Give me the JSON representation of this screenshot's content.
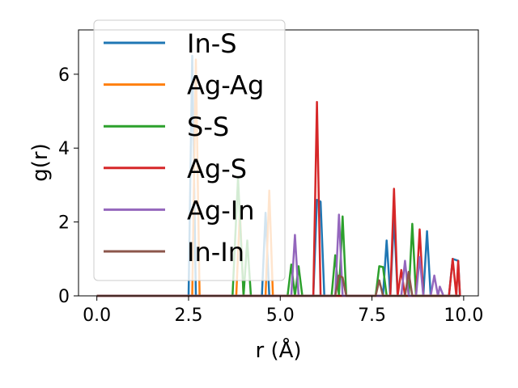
{
  "chart_data": {
    "type": "line",
    "title": "",
    "xlabel": "r (Å)",
    "ylabel": "g(r)",
    "xlim": [
      -0.5,
      10.4
    ],
    "ylim": [
      0,
      7.2
    ],
    "xticks": [
      0.0,
      2.5,
      5.0,
      7.5,
      10.0
    ],
    "xtick_labels": [
      "0.0",
      "2.5",
      "5.0",
      "7.5",
      "10.0"
    ],
    "yticks": [
      0,
      2,
      4,
      6
    ],
    "ytick_labels": [
      "0",
      "2",
      "4",
      "6"
    ],
    "grid": false,
    "legend_position": "upper-left",
    "series": [
      {
        "name": "In-S",
        "color": "#1f77b4",
        "points": [
          [
            0,
            0
          ],
          [
            2.5,
            0
          ],
          [
            2.6,
            6.5
          ],
          [
            2.7,
            0
          ],
          [
            4.5,
            0
          ],
          [
            4.6,
            2.25
          ],
          [
            4.7,
            0
          ],
          [
            5.9,
            0
          ],
          [
            6.0,
            2.6
          ],
          [
            6.1,
            2.55
          ],
          [
            6.2,
            0
          ],
          [
            7.8,
            0
          ],
          [
            7.9,
            1.5
          ],
          [
            8.0,
            0
          ],
          [
            8.1,
            2.15
          ],
          [
            8.2,
            0
          ],
          [
            8.9,
            0
          ],
          [
            9.0,
            1.75
          ],
          [
            9.1,
            0
          ],
          [
            9.6,
            0
          ],
          [
            9.7,
            1.0
          ],
          [
            9.85,
            0.95
          ],
          [
            9.9,
            0
          ]
        ]
      },
      {
        "name": "Ag-Ag",
        "color": "#ff7f0e",
        "points": [
          [
            0,
            0
          ],
          [
            2.6,
            0
          ],
          [
            2.7,
            6.4
          ],
          [
            2.8,
            0
          ],
          [
            3.8,
            0
          ],
          [
            3.9,
            2.3
          ],
          [
            4.0,
            0
          ],
          [
            4.6,
            0
          ],
          [
            4.7,
            2.85
          ],
          [
            4.8,
            0
          ],
          [
            9.9,
            0
          ]
        ]
      },
      {
        "name": "S-S",
        "color": "#2ca02c",
        "points": [
          [
            0,
            0
          ],
          [
            3.7,
            0
          ],
          [
            3.85,
            3.2
          ],
          [
            4.0,
            0
          ],
          [
            4.1,
            1.5
          ],
          [
            4.2,
            0
          ],
          [
            5.2,
            0
          ],
          [
            5.3,
            0.85
          ],
          [
            5.4,
            0
          ],
          [
            5.5,
            0.8
          ],
          [
            5.6,
            0
          ],
          [
            6.4,
            0
          ],
          [
            6.5,
            1.1
          ],
          [
            6.6,
            0
          ],
          [
            6.7,
            2.15
          ],
          [
            6.8,
            0
          ],
          [
            7.6,
            0
          ],
          [
            7.7,
            0.8
          ],
          [
            7.8,
            0.78
          ],
          [
            7.9,
            0
          ],
          [
            8.5,
            0
          ],
          [
            8.6,
            1.95
          ],
          [
            8.7,
            0
          ],
          [
            9.9,
            0
          ]
        ]
      },
      {
        "name": "Ag-S",
        "color": "#d62728",
        "points": [
          [
            0,
            0
          ],
          [
            5.9,
            0
          ],
          [
            6.0,
            5.25
          ],
          [
            6.1,
            0
          ],
          [
            8.0,
            0
          ],
          [
            8.1,
            2.9
          ],
          [
            8.2,
            0
          ],
          [
            8.3,
            0.7
          ],
          [
            8.4,
            0
          ],
          [
            8.7,
            0
          ],
          [
            8.8,
            1.8
          ],
          [
            8.9,
            0
          ],
          [
            9.6,
            0
          ],
          [
            9.7,
            1.0
          ],
          [
            9.8,
            0
          ],
          [
            9.85,
            0.95
          ],
          [
            9.9,
            0
          ]
        ]
      },
      {
        "name": "Ag-In",
        "color": "#9467bd",
        "points": [
          [
            0,
            0
          ],
          [
            5.3,
            0
          ],
          [
            5.4,
            1.65
          ],
          [
            5.5,
            0
          ],
          [
            6.5,
            0
          ],
          [
            6.6,
            2.2
          ],
          [
            6.7,
            0
          ],
          [
            8.3,
            0
          ],
          [
            8.4,
            0.95
          ],
          [
            8.5,
            0
          ],
          [
            8.7,
            0
          ],
          [
            8.8,
            1.05
          ],
          [
            8.9,
            0
          ],
          [
            9.1,
            0
          ],
          [
            9.2,
            0.55
          ],
          [
            9.3,
            0
          ],
          [
            9.35,
            0.25
          ],
          [
            9.45,
            0
          ],
          [
            9.9,
            0
          ]
        ]
      },
      {
        "name": "In-In",
        "color": "#8c564b",
        "points": [
          [
            0,
            0
          ],
          [
            6.5,
            0
          ],
          [
            6.6,
            0.55
          ],
          [
            6.7,
            0.5
          ],
          [
            6.8,
            0
          ],
          [
            7.6,
            0
          ],
          [
            7.7,
            0.42
          ],
          [
            7.8,
            0
          ],
          [
            8.4,
            0
          ],
          [
            8.5,
            0.65
          ],
          [
            8.6,
            0
          ],
          [
            9.9,
            0
          ]
        ]
      }
    ]
  }
}
